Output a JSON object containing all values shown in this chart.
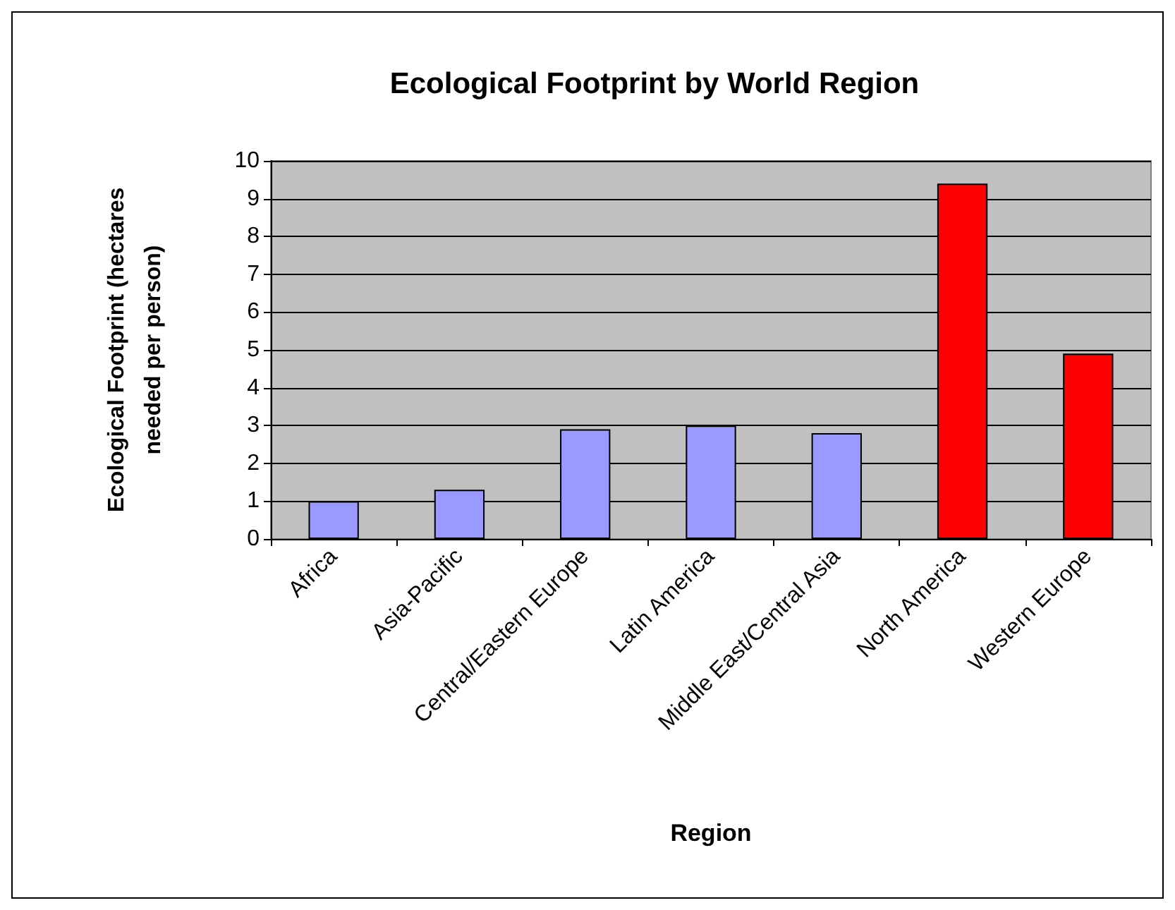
{
  "chart_data": {
    "type": "bar",
    "title": "Ecological Footprint by World Region",
    "xlabel": "Region",
    "ylabel": "Ecological Footprint (hectares needed per person)",
    "categories": [
      "Africa",
      "Asia-Pacific",
      "Central/Eastern Europe",
      "Latin America",
      "Middle East/Central Asia",
      "North America",
      "Western Europe"
    ],
    "values": [
      1.0,
      1.3,
      2.9,
      3.0,
      2.8,
      9.4,
      4.9
    ],
    "colors": [
      "#9999ff",
      "#9999ff",
      "#9999ff",
      "#9999ff",
      "#9999ff",
      "#ff0000",
      "#ff0000"
    ],
    "ylim": [
      0,
      10
    ],
    "yticks": [
      0,
      1,
      2,
      3,
      4,
      5,
      6,
      7,
      8,
      9,
      10
    ],
    "grid": "y"
  }
}
